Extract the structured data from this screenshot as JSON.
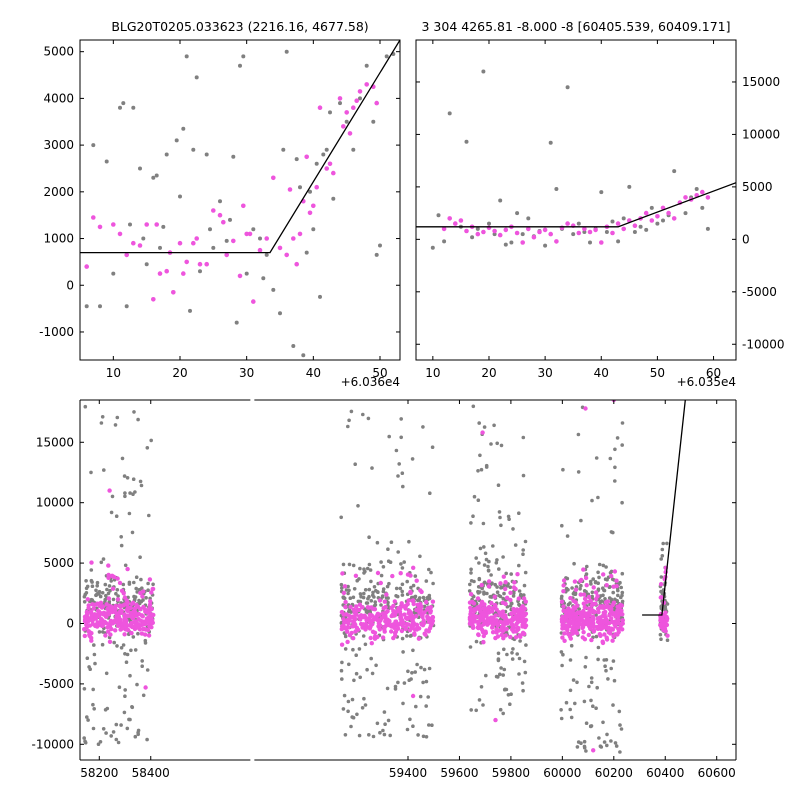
{
  "colors": {
    "gray": "#808080",
    "magenta": "#ee55dd",
    "fit_line": "#000000",
    "background": "#ffffff"
  },
  "chart_data": [
    {
      "id": "zoom-left",
      "type": "scatter",
      "title": "BLG20T0205.033623 (2216.16, 4677.58)",
      "x_offset_label": "+6.036e4",
      "xlim": [
        5,
        53
      ],
      "ylim": [
        -1600,
        5250
      ],
      "xticks": [
        10,
        20,
        30,
        40,
        50
      ],
      "yticks": [
        -1000,
        0,
        1000,
        2000,
        3000,
        4000,
        5000
      ],
      "y_axis_side": "left",
      "grid": false,
      "series": [
        {
          "color": "gray",
          "points": [
            [
              6,
              -450
            ],
            [
              7,
              3000
            ],
            [
              8,
              -450
            ],
            [
              9,
              2650
            ],
            [
              10,
              250
            ],
            [
              11,
              3800
            ],
            [
              11.5,
              3900
            ],
            [
              12,
              -450
            ],
            [
              12.5,
              1300
            ],
            [
              13,
              3800
            ],
            [
              14,
              2500
            ],
            [
              14.5,
              1000
            ],
            [
              15,
              450
            ],
            [
              16,
              2300
            ],
            [
              16.5,
              2350
            ],
            [
              17,
              800
            ],
            [
              17.5,
              1250
            ],
            [
              18,
              2800
            ],
            [
              19,
              -150
            ],
            [
              19.5,
              3100
            ],
            [
              20,
              1900
            ],
            [
              20.5,
              3350
            ],
            [
              21,
              4900
            ],
            [
              21.5,
              -550
            ],
            [
              22,
              2900
            ],
            [
              22.5,
              4450
            ],
            [
              23,
              300
            ],
            [
              24,
              2800
            ],
            [
              24.5,
              1200
            ],
            [
              25,
              800
            ],
            [
              26,
              1800
            ],
            [
              27,
              950
            ],
            [
              27.5,
              1400
            ],
            [
              28,
              2750
            ],
            [
              28.5,
              -800
            ],
            [
              29,
              4700
            ],
            [
              29.5,
              4900
            ],
            [
              30,
              250
            ],
            [
              31,
              1200
            ],
            [
              32,
              1000
            ],
            [
              32.5,
              150
            ],
            [
              33,
              650
            ],
            [
              34,
              -100
            ],
            [
              35,
              -600
            ],
            [
              35.5,
              2900
            ],
            [
              36,
              5000
            ],
            [
              37,
              -1300
            ],
            [
              37.5,
              2700
            ],
            [
              38,
              2100
            ],
            [
              38.5,
              -1500
            ],
            [
              39,
              700
            ],
            [
              39.5,
              2000
            ],
            [
              40,
              1200
            ],
            [
              40.5,
              2600
            ],
            [
              41,
              -250
            ],
            [
              41.5,
              2800
            ],
            [
              42,
              2900
            ],
            [
              42.5,
              3700
            ],
            [
              43,
              1850
            ],
            [
              44,
              3900
            ],
            [
              45,
              3500
            ],
            [
              46,
              2900
            ],
            [
              47,
              4000
            ],
            [
              48,
              4700
            ],
            [
              49,
              3500
            ],
            [
              49.5,
              650
            ],
            [
              50,
              850
            ],
            [
              51,
              4900
            ],
            [
              52,
              4950
            ]
          ]
        },
        {
          "color": "magenta",
          "points": [
            [
              6,
              400
            ],
            [
              7,
              1450
            ],
            [
              8,
              1250
            ],
            [
              10,
              1300
            ],
            [
              11,
              1100
            ],
            [
              12,
              650
            ],
            [
              13,
              900
            ],
            [
              14,
              850
            ],
            [
              15,
              1300
            ],
            [
              16,
              -300
            ],
            [
              16.5,
              1300
            ],
            [
              17,
              250
            ],
            [
              18,
              300
            ],
            [
              18.5,
              700
            ],
            [
              19,
              -150
            ],
            [
              20,
              900
            ],
            [
              20.5,
              250
            ],
            [
              21,
              500
            ],
            [
              22,
              900
            ],
            [
              22.5,
              1000
            ],
            [
              23,
              450
            ],
            [
              24,
              450
            ],
            [
              25,
              1600
            ],
            [
              26,
              1500
            ],
            [
              26.5,
              1350
            ],
            [
              27,
              650
            ],
            [
              28,
              950
            ],
            [
              29,
              200
            ],
            [
              29.5,
              1700
            ],
            [
              30,
              1100
            ],
            [
              30.5,
              1100
            ],
            [
              31,
              -350
            ],
            [
              32,
              750
            ],
            [
              33,
              1000
            ],
            [
              34,
              2300
            ],
            [
              35,
              800
            ],
            [
              36,
              650
            ],
            [
              36.5,
              2050
            ],
            [
              37,
              1000
            ],
            [
              37.5,
              450
            ],
            [
              38,
              1100
            ],
            [
              38.5,
              1800
            ],
            [
              39,
              2750
            ],
            [
              39.5,
              1550
            ],
            [
              40,
              1700
            ],
            [
              40.5,
              2100
            ],
            [
              41,
              3800
            ],
            [
              42,
              2500
            ],
            [
              42.5,
              2600
            ],
            [
              43,
              2400
            ],
            [
              44,
              4000
            ],
            [
              44.5,
              3400
            ],
            [
              45,
              3700
            ],
            [
              45.5,
              3250
            ],
            [
              46,
              3800
            ],
            [
              46.5,
              3950
            ],
            [
              47,
              4150
            ],
            [
              48,
              4300
            ],
            [
              49,
              4250
            ],
            [
              49.5,
              3900
            ]
          ]
        }
      ],
      "fit_line": [
        [
          5,
          700
        ],
        [
          33.5,
          700
        ],
        [
          53,
          5250
        ]
      ]
    },
    {
      "id": "zoom-right",
      "type": "scatter",
      "title": "3 304 4265.81 -8.000 -8 [60405.539, 60409.171]",
      "x_offset_label": "+6.035e4",
      "xlim": [
        7,
        64
      ],
      "ylim": [
        -11500,
        19000
      ],
      "xticks": [
        10,
        20,
        30,
        40,
        50,
        60
      ],
      "yticks": [
        -10000,
        -5000,
        0,
        5000,
        10000,
        15000
      ],
      "y_axis_side": "right",
      "grid": false,
      "series": [
        {
          "color": "gray",
          "points": [
            [
              10,
              -800
            ],
            [
              11,
              2300
            ],
            [
              12,
              -200
            ],
            [
              13,
              12000
            ],
            [
              14,
              1500
            ],
            [
              15,
              1200
            ],
            [
              16,
              9300
            ],
            [
              17,
              200
            ],
            [
              18,
              1000
            ],
            [
              19,
              16000
            ],
            [
              20,
              1500
            ],
            [
              21,
              500
            ],
            [
              22,
              3700
            ],
            [
              23,
              -500
            ],
            [
              24,
              -300
            ],
            [
              25,
              2500
            ],
            [
              26,
              500
            ],
            [
              27,
              2000
            ],
            [
              28,
              300
            ],
            [
              29,
              800
            ],
            [
              30,
              -600
            ],
            [
              31,
              9200
            ],
            [
              32,
              4800
            ],
            [
              33,
              1000
            ],
            [
              34,
              14500
            ],
            [
              35,
              500
            ],
            [
              36,
              1500
            ],
            [
              37,
              700
            ],
            [
              38,
              -300
            ],
            [
              39,
              1000
            ],
            [
              40,
              4500
            ],
            [
              41,
              700
            ],
            [
              42,
              1700
            ],
            [
              43,
              -200
            ],
            [
              44,
              2000
            ],
            [
              45,
              5000
            ],
            [
              46,
              700
            ],
            [
              47,
              1200
            ],
            [
              48,
              900
            ],
            [
              49,
              3000
            ],
            [
              50,
              1500
            ],
            [
              51,
              1800
            ],
            [
              52,
              2300
            ],
            [
              53,
              6500
            ],
            [
              54,
              3500
            ],
            [
              55,
              2500
            ],
            [
              56,
              4000
            ],
            [
              57,
              4800
            ],
            [
              58,
              3000
            ],
            [
              59,
              1000
            ]
          ]
        },
        {
          "color": "magenta",
          "points": [
            [
              12,
              1000
            ],
            [
              13,
              2000
            ],
            [
              14,
              1500
            ],
            [
              15,
              1800
            ],
            [
              16,
              800
            ],
            [
              17,
              1200
            ],
            [
              18,
              500
            ],
            [
              19,
              700
            ],
            [
              20,
              1100
            ],
            [
              21,
              800
            ],
            [
              22,
              400
            ],
            [
              23,
              900
            ],
            [
              24,
              1200
            ],
            [
              25,
              600
            ],
            [
              26,
              -300
            ],
            [
              27,
              1000
            ],
            [
              28,
              200
            ],
            [
              29,
              700
            ],
            [
              30,
              900
            ],
            [
              31,
              500
            ],
            [
              32,
              -200
            ],
            [
              33,
              1100
            ],
            [
              34,
              1500
            ],
            [
              35,
              1300
            ],
            [
              36,
              600
            ],
            [
              37,
              1000
            ],
            [
              38,
              700
            ],
            [
              39,
              900
            ],
            [
              40,
              -300
            ],
            [
              41,
              1200
            ],
            [
              42,
              600
            ],
            [
              43,
              1500
            ],
            [
              44,
              1000
            ],
            [
              45,
              1800
            ],
            [
              46,
              1300
            ],
            [
              47,
              2000
            ],
            [
              48,
              2500
            ],
            [
              49,
              1800
            ],
            [
              50,
              2200
            ],
            [
              51,
              3000
            ],
            [
              52,
              2500
            ],
            [
              53,
              2000
            ],
            [
              54,
              3500
            ],
            [
              55,
              4000
            ],
            [
              56,
              3800
            ],
            [
              57,
              4200
            ],
            [
              58,
              4500
            ],
            [
              59,
              4000
            ]
          ]
        }
      ],
      "fit_line": [
        [
          7,
          1200
        ],
        [
          43,
          1200
        ],
        [
          64,
          5400
        ]
      ]
    },
    {
      "id": "full-lightcurve",
      "type": "scatter",
      "xlim": [
        58125,
        60675
      ],
      "ylim": [
        -11300,
        18500
      ],
      "xticks": [
        58200,
        58400,
        59400,
        59600,
        59800,
        60000,
        60200,
        60400,
        60600
      ],
      "yticks": [
        -10000,
        -5000,
        0,
        5000,
        10000,
        15000
      ],
      "y_axis_side": "left",
      "grid": false,
      "axis_break": {
        "after": 58455,
        "before": 59135
      },
      "seasons": [
        {
          "x_range": [
            58140,
            58410
          ],
          "gray_n": 280,
          "magenta_n": 280,
          "gray_y": [
            -10000,
            18000
          ]
        },
        {
          "x_range": [
            59140,
            59500
          ],
          "gray_n": 330,
          "magenta_n": 280,
          "gray_y": [
            -9500,
            18000
          ]
        },
        {
          "x_range": [
            59640,
            59860
          ],
          "gray_n": 260,
          "magenta_n": 240,
          "gray_y": [
            -7500,
            18000
          ]
        },
        {
          "x_range": [
            59995,
            60235
          ],
          "gray_n": 290,
          "magenta_n": 300,
          "gray_y": [
            -11000,
            18000
          ]
        },
        {
          "x_range": [
            60380,
            60410
          ],
          "gray_n": 60,
          "magenta_n": 40,
          "gray_y": [
            -1500,
            7500
          ]
        }
      ],
      "outliers_magenta": [
        [
          58240,
          11000
        ],
        [
          58310,
          4500
        ],
        [
          58380,
          -5300
        ],
        [
          59420,
          -6000
        ],
        [
          59690,
          15800
        ],
        [
          59740,
          -8000
        ],
        [
          60090,
          17800
        ],
        [
          60120,
          -10500
        ],
        [
          60200,
          18500
        ]
      ],
      "fit_line": [
        [
          60310,
          700
        ],
        [
          60387,
          700
        ],
        [
          60478,
          18500
        ]
      ]
    }
  ]
}
